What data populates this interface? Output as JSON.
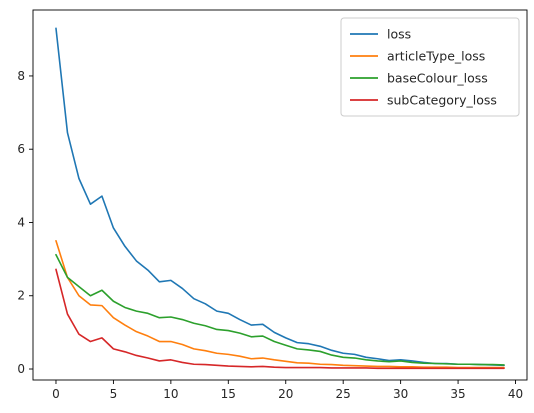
{
  "chart_data": {
    "type": "line",
    "title": "",
    "xlabel": "",
    "ylabel": "",
    "xlim": [
      -2,
      41
    ],
    "ylim": [
      -0.3,
      9.8
    ],
    "xticks": [
      0,
      5,
      10,
      15,
      20,
      25,
      30,
      35,
      40
    ],
    "yticks": [
      0,
      2,
      4,
      6,
      8
    ],
    "legend_position": "upper right",
    "x": [
      0,
      1,
      2,
      3,
      4,
      5,
      6,
      7,
      8,
      9,
      10,
      11,
      12,
      13,
      14,
      15,
      16,
      17,
      18,
      19,
      20,
      21,
      22,
      23,
      24,
      25,
      26,
      27,
      28,
      29,
      30,
      31,
      32,
      33,
      34,
      35,
      36,
      37,
      38,
      39
    ],
    "series": [
      {
        "name": "loss",
        "color": "#1f77b4",
        "values": [
          9.3,
          6.45,
          5.2,
          4.5,
          4.72,
          3.85,
          3.35,
          2.95,
          2.7,
          2.38,
          2.42,
          2.2,
          1.92,
          1.78,
          1.58,
          1.52,
          1.35,
          1.2,
          1.22,
          1.0,
          0.85,
          0.72,
          0.69,
          0.62,
          0.51,
          0.43,
          0.4,
          0.32,
          0.28,
          0.23,
          0.25,
          0.22,
          0.18,
          0.15,
          0.15,
          0.13,
          0.13,
          0.12,
          0.11,
          0.1
        ]
      },
      {
        "name": "articleType_loss",
        "color": "#ff7f0e",
        "values": [
          3.5,
          2.5,
          2.0,
          1.75,
          1.73,
          1.4,
          1.2,
          1.02,
          0.9,
          0.75,
          0.75,
          0.67,
          0.55,
          0.5,
          0.43,
          0.4,
          0.35,
          0.28,
          0.3,
          0.25,
          0.21,
          0.17,
          0.16,
          0.13,
          0.12,
          0.1,
          0.09,
          0.08,
          0.07,
          0.07,
          0.06,
          0.06,
          0.05,
          0.05,
          0.05,
          0.04,
          0.04,
          0.04,
          0.04,
          0.04
        ]
      },
      {
        "name": "baseColour_loss",
        "color": "#2ca02c",
        "values": [
          3.12,
          2.5,
          2.25,
          2.0,
          2.15,
          1.85,
          1.68,
          1.58,
          1.52,
          1.4,
          1.42,
          1.35,
          1.25,
          1.18,
          1.08,
          1.05,
          0.98,
          0.88,
          0.9,
          0.75,
          0.65,
          0.55,
          0.52,
          0.48,
          0.38,
          0.32,
          0.3,
          0.25,
          0.22,
          0.2,
          0.22,
          0.18,
          0.16,
          0.15,
          0.14,
          0.13,
          0.13,
          0.12,
          0.12,
          0.11
        ]
      },
      {
        "name": "subCategory_loss",
        "color": "#d62728",
        "values": [
          2.72,
          1.5,
          0.95,
          0.75,
          0.85,
          0.55,
          0.47,
          0.37,
          0.3,
          0.22,
          0.25,
          0.18,
          0.13,
          0.12,
          0.1,
          0.08,
          0.07,
          0.06,
          0.07,
          0.05,
          0.04,
          0.04,
          0.04,
          0.04,
          0.03,
          0.03,
          0.03,
          0.03,
          0.02,
          0.02,
          0.02,
          0.02,
          0.02,
          0.02,
          0.02,
          0.02,
          0.02,
          0.02,
          0.02,
          0.02
        ]
      }
    ]
  }
}
